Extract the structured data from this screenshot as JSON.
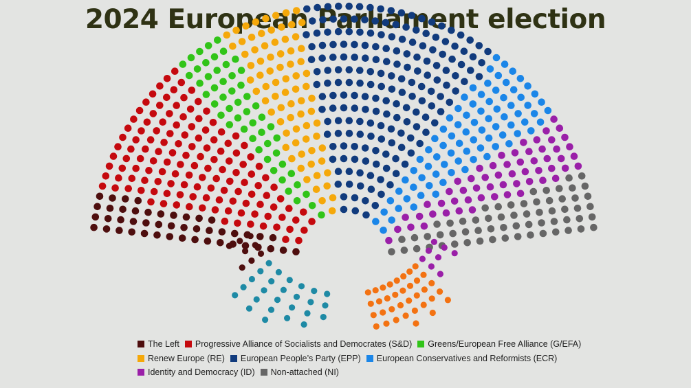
{
  "title": "2024 European Parliament election",
  "chart_data": {
    "type": "parliament",
    "title": "2024 European Parliament election",
    "series": [
      {
        "name": "The Left",
        "color": "#4e0e0e",
        "seats": 46
      },
      {
        "name": "Progressive Alliance of Socialists and Democrates (S&D)",
        "color": "#c5090e",
        "seats": 136
      },
      {
        "name": "Greens/European Free Alliance (G/EFA)",
        "color": "#31c418",
        "seats": 53
      },
      {
        "name": "Renew Europe (RE)",
        "color": "#f5a80a",
        "seats": 77
      },
      {
        "name": "European People’s Party (EPP)",
        "color": "#113b7d",
        "seats": 188
      },
      {
        "name": "European Conservatives and Reformists (ECR)",
        "color": "#1b86e8",
        "seats": 83
      },
      {
        "name": "Identity and Democracy (ID)",
        "color": "#9a1fa8",
        "seats": 58
      },
      {
        "name": "Non-attached (NI)",
        "color": "#666666",
        "seats": 62
      }
    ],
    "lower_blocks": [
      {
        "color": "#4e0e0e",
        "seats": 8
      },
      {
        "color": "#1e8aa5",
        "seats": 30
      },
      {
        "color": "#f37212",
        "seats": 37
      },
      {
        "color": "#9a1fa8",
        "seats": 8
      }
    ],
    "legend_position": "bottom"
  },
  "legend": {
    "rows": [
      [
        {
          "label": "The Left",
          "color": "#4e0e0e"
        },
        {
          "label": "Progressive Alliance of Socialists and Democrates (S&D)",
          "color": "#c5090e"
        },
        {
          "label": "Greens/European Free Alliance (G/EFA)",
          "color": "#31c418"
        }
      ],
      [
        {
          "label": "Renew Europe (RE)",
          "color": "#f5a80a"
        },
        {
          "label": "European People’s Party (EPP)",
          "color": "#113b7d"
        },
        {
          "label": "European Conservatives and Reformists (ECR)",
          "color": "#1b86e8"
        }
      ],
      [
        {
          "label": "Identity and Democracy (ID)",
          "color": "#9a1fa8"
        },
        {
          "label": "Non-attached (NI)",
          "color": "#666666"
        }
      ]
    ]
  }
}
